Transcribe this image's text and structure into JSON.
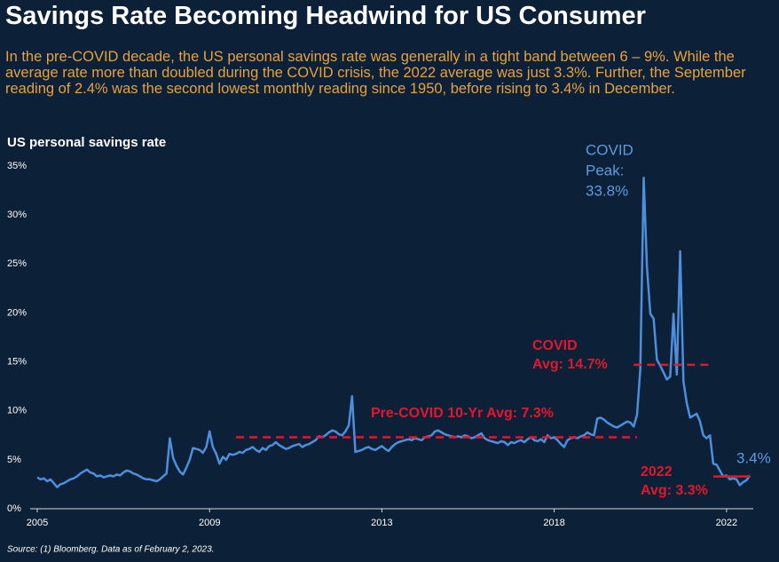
{
  "chart_data": {
    "type": "line",
    "title": "Savings Rate Becoming Headwind for US Consumer",
    "subtitle": "In the pre-COVID decade, the US personal savings rate was generally in a tight band between 6 – 9%. While the average rate more than doubled during the COVID crisis, the 2022 average was just 3.3%. Further, the September reading of 2.4% was the second lowest monthly reading since 1950, before rising to 3.4% in December.",
    "y_axis_label": "US personal savings rate",
    "source": "Source:  (1) Bloomberg. Data as of February 2, 2023.",
    "categories": [
      "2005",
      null,
      null,
      null,
      null,
      null,
      null,
      null,
      null,
      null,
      null,
      null,
      null,
      null,
      null,
      null,
      null,
      null,
      null,
      null,
      null,
      null,
      null,
      null,
      null,
      null,
      null,
      null,
      null,
      null,
      null,
      null,
      null,
      null,
      null,
      null,
      null,
      null,
      null,
      null,
      null,
      null,
      null,
      null,
      null,
      null,
      null,
      null,
      null,
      null,
      null,
      null,
      "2009",
      null,
      null,
      null,
      null,
      null,
      null,
      null,
      null,
      null,
      null,
      null,
      null,
      null,
      null,
      null,
      null,
      null,
      null,
      null,
      null,
      null,
      null,
      null,
      null,
      null,
      null,
      null,
      null,
      null,
      null,
      null,
      null,
      null,
      null,
      null,
      null,
      null,
      null,
      null,
      null,
      null,
      null,
      null,
      null,
      null,
      null,
      null,
      null,
      null,
      null,
      null,
      "2013",
      null,
      null,
      null,
      null,
      null,
      null,
      null,
      null,
      null,
      null,
      null,
      null,
      null,
      null,
      null,
      null,
      null,
      null,
      null,
      null,
      null,
      null,
      null,
      null,
      null,
      null,
      null,
      null,
      null,
      null,
      null,
      null,
      null,
      null,
      null,
      null,
      null,
      null,
      null,
      null,
      null,
      null,
      null,
      null,
      null,
      null,
      null,
      null,
      null,
      null,
      null,
      "2018",
      null,
      null,
      null,
      null,
      null,
      null,
      null,
      null,
      null,
      null,
      null,
      null,
      null,
      null,
      null,
      null,
      null,
      null,
      null,
      null,
      null,
      null,
      null,
      null,
      null,
      null,
      null,
      null,
      null,
      null,
      null,
      null,
      null,
      null,
      null,
      null,
      null,
      null,
      null,
      null,
      null,
      null,
      null,
      null,
      null,
      null,
      null,
      null,
      null,
      null,
      null,
      "2022",
      null,
      null,
      null,
      null,
      null,
      null,
      null
    ],
    "series": [
      {
        "name": "US personal savings rate",
        "color": "#4d8fdc",
        "values": [
          3.2,
          3.0,
          3.1,
          2.8,
          3.0,
          2.6,
          2.2,
          2.5,
          2.6,
          2.8,
          3.0,
          3.1,
          3.3,
          3.6,
          3.8,
          4.0,
          3.7,
          3.6,
          3.3,
          3.4,
          3.2,
          3.3,
          3.4,
          3.3,
          3.5,
          3.4,
          3.7,
          3.9,
          3.8,
          3.6,
          3.5,
          3.3,
          3.1,
          3.0,
          3.0,
          2.9,
          2.8,
          3.0,
          3.3,
          3.6,
          7.2,
          5.2,
          4.4,
          3.8,
          3.5,
          4.2,
          5.0,
          6.2,
          6.1,
          6.0,
          5.7,
          6.3,
          7.9,
          6.3,
          5.6,
          4.6,
          5.3,
          5.0,
          5.6,
          5.5,
          5.6,
          5.8,
          5.7,
          6.0,
          6.1,
          6.3,
          6.0,
          5.8,
          6.2,
          6.0,
          6.4,
          6.5,
          6.8,
          6.5,
          6.3,
          6.1,
          6.2,
          6.4,
          6.5,
          6.6,
          6.3,
          6.5,
          6.6,
          6.8,
          7.0,
          7.4,
          7.3,
          7.5,
          7.8,
          8.0,
          7.9,
          7.6,
          7.5,
          7.9,
          8.5,
          11.5,
          5.8,
          5.9,
          6.0,
          6.2,
          6.3,
          6.1,
          6.0,
          6.2,
          6.4,
          6.1,
          5.9,
          6.3,
          6.6,
          6.8,
          6.9,
          7.0,
          7.1,
          7.0,
          7.2,
          7.1,
          7.0,
          7.3,
          7.4,
          7.5,
          7.9,
          8.0,
          7.8,
          7.6,
          7.5,
          7.4,
          7.3,
          7.4,
          7.3,
          7.5,
          7.4,
          7.2,
          7.3,
          7.5,
          7.7,
          7.2,
          7.0,
          6.9,
          6.8,
          6.7,
          6.9,
          6.8,
          6.5,
          6.8,
          6.7,
          6.9,
          7.0,
          6.8,
          7.1,
          7.3,
          7.0,
          6.9,
          7.1,
          6.8,
          7.5,
          7.2,
          7.3,
          7.0,
          6.6,
          6.3,
          7.0,
          7.2,
          7.3,
          7.2,
          7.4,
          7.5,
          7.8,
          7.6,
          7.5,
          9.2,
          9.3,
          9.1,
          8.8,
          8.6,
          8.4,
          8.3,
          8.5,
          8.7,
          8.9,
          8.8,
          8.4,
          9.6,
          14.3,
          33.8,
          24.6,
          19.9,
          19.4,
          15.2,
          14.6,
          13.9,
          13.2,
          13.5,
          19.9,
          13.7,
          26.3,
          13.0,
          10.8,
          9.3,
          9.5,
          9.7,
          8.9,
          7.5,
          7.2,
          7.5,
          4.6,
          4.5,
          3.9,
          3.3,
          3.4,
          3.0,
          3.1,
          3.0,
          2.4,
          2.7,
          2.9,
          3.4
        ]
      }
    ],
    "ylim": [
      0,
      35
    ],
    "yticks": [
      {
        "value": 0,
        "label": "0%"
      },
      {
        "value": 5,
        "label": "5%"
      },
      {
        "value": 10,
        "label": "10%"
      },
      {
        "value": 15,
        "label": "15%"
      },
      {
        "value": 20,
        "label": "20%"
      },
      {
        "value": 25,
        "label": "25%"
      },
      {
        "value": 30,
        "label": "30%"
      },
      {
        "value": 35,
        "label": "35%"
      }
    ],
    "grid": false,
    "peak_annotation": {
      "lines": [
        "COVID",
        "Peak:",
        "33.8%"
      ],
      "index": 183,
      "value": 33.8,
      "color": "#5b9bdf"
    },
    "last_label": {
      "label": "3.4%",
      "index": 215,
      "value": 3.4,
      "color": "#5b9bdf"
    },
    "reference_lines": [
      {
        "lines": [
          "Pre-COVID 10-Yr Avg: 7.3%"
        ],
        "value": 7.3,
        "start": 60,
        "end": 181,
        "style": "dashed",
        "color": "#e3172c"
      },
      {
        "lines": [
          "COVID",
          "Avg: 14.7%"
        ],
        "value": 14.7,
        "start": 180,
        "end": 203,
        "style": "dashed",
        "color": "#e3172c"
      },
      {
        "lines": [
          "2022",
          "Avg: 3.3%"
        ],
        "value": 3.3,
        "start": 204,
        "end": 215,
        "style": "solid",
        "color": "#e3172c"
      }
    ]
  }
}
